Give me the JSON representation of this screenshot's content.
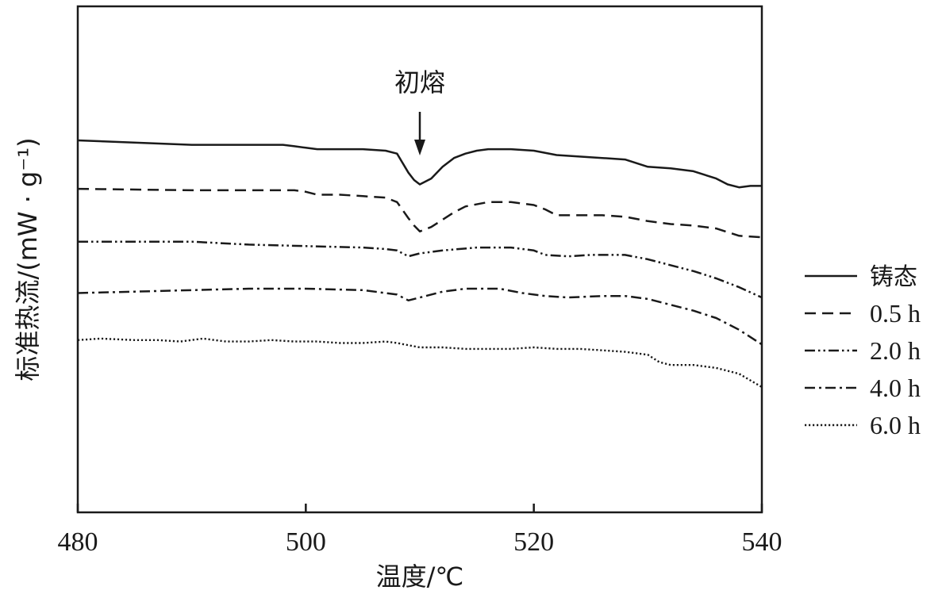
{
  "chart_data": {
    "type": "line",
    "xlabel": "温度/℃",
    "ylabel": "标准热流/(mW · g⁻¹)",
    "xlim": [
      480,
      540
    ],
    "xticks": [
      "480",
      "500",
      "520",
      "540"
    ],
    "grid": false,
    "legend_position": "right",
    "annotation": {
      "text": "初熔",
      "x": 510
    },
    "series": [
      {
        "name": "铸态",
        "style": "solid",
        "points": [
          [
            480,
            1.86
          ],
          [
            490,
            1.83
          ],
          [
            498,
            1.83
          ],
          [
            499,
            1.82
          ],
          [
            500,
            1.81
          ],
          [
            501,
            1.8
          ],
          [
            503,
            1.8
          ],
          [
            505,
            1.8
          ],
          [
            507,
            1.79
          ],
          [
            508,
            1.77
          ],
          [
            509,
            1.64
          ],
          [
            509.5,
            1.59
          ],
          [
            510,
            1.56
          ],
          [
            511,
            1.6
          ],
          [
            512,
            1.68
          ],
          [
            513,
            1.74
          ],
          [
            514,
            1.77
          ],
          [
            515,
            1.79
          ],
          [
            516,
            1.8
          ],
          [
            518,
            1.8
          ],
          [
            520,
            1.79
          ],
          [
            522,
            1.76
          ],
          [
            524,
            1.75
          ],
          [
            526,
            1.74
          ],
          [
            528,
            1.73
          ],
          [
            530,
            1.68
          ],
          [
            532,
            1.67
          ],
          [
            534,
            1.65
          ],
          [
            536,
            1.6
          ],
          [
            537,
            1.56
          ],
          [
            538,
            1.54
          ],
          [
            539,
            1.55
          ],
          [
            540,
            1.55
          ]
        ]
      },
      {
        "name": "0.5 h",
        "style": "dashed",
        "points": [
          [
            480,
            1.53
          ],
          [
            490,
            1.52
          ],
          [
            499,
            1.52
          ],
          [
            500,
            1.51
          ],
          [
            501,
            1.49
          ],
          [
            503,
            1.49
          ],
          [
            505,
            1.48
          ],
          [
            507,
            1.47
          ],
          [
            508,
            1.44
          ],
          [
            509,
            1.33
          ],
          [
            509.5,
            1.28
          ],
          [
            510,
            1.24
          ],
          [
            511,
            1.27
          ],
          [
            512,
            1.32
          ],
          [
            513,
            1.37
          ],
          [
            514,
            1.41
          ],
          [
            516,
            1.44
          ],
          [
            518,
            1.44
          ],
          [
            520,
            1.42
          ],
          [
            521,
            1.39
          ],
          [
            522,
            1.35
          ],
          [
            524,
            1.35
          ],
          [
            526,
            1.35
          ],
          [
            528,
            1.34
          ],
          [
            530,
            1.31
          ],
          [
            532,
            1.29
          ],
          [
            534,
            1.28
          ],
          [
            536,
            1.26
          ],
          [
            538,
            1.21
          ],
          [
            540,
            1.2
          ]
        ]
      },
      {
        "name": "2.0 h",
        "style": "dash-dot-dot",
        "points": [
          [
            480,
            1.17
          ],
          [
            485,
            1.17
          ],
          [
            490,
            1.17
          ],
          [
            495,
            1.15
          ],
          [
            500,
            1.14
          ],
          [
            505,
            1.13
          ],
          [
            507,
            1.12
          ],
          [
            508,
            1.11
          ],
          [
            509,
            1.07
          ],
          [
            510,
            1.09
          ],
          [
            512,
            1.11
          ],
          [
            515,
            1.13
          ],
          [
            518,
            1.13
          ],
          [
            520,
            1.11
          ],
          [
            521,
            1.08
          ],
          [
            523,
            1.07
          ],
          [
            525,
            1.08
          ],
          [
            528,
            1.08
          ],
          [
            530,
            1.05
          ],
          [
            532,
            1.01
          ],
          [
            534,
            0.97
          ],
          [
            536,
            0.92
          ],
          [
            538,
            0.86
          ],
          [
            540,
            0.79
          ]
        ]
      },
      {
        "name": "4.0 h",
        "style": "dash-dot",
        "points": [
          [
            480,
            0.82
          ],
          [
            485,
            0.83
          ],
          [
            490,
            0.84
          ],
          [
            495,
            0.85
          ],
          [
            500,
            0.85
          ],
          [
            505,
            0.84
          ],
          [
            507,
            0.82
          ],
          [
            508,
            0.81
          ],
          [
            509,
            0.77
          ],
          [
            510,
            0.79
          ],
          [
            512,
            0.83
          ],
          [
            514,
            0.85
          ],
          [
            517,
            0.85
          ],
          [
            519,
            0.82
          ],
          [
            521,
            0.8
          ],
          [
            523,
            0.79
          ],
          [
            526,
            0.8
          ],
          [
            528,
            0.8
          ],
          [
            530,
            0.78
          ],
          [
            532,
            0.74
          ],
          [
            534,
            0.7
          ],
          [
            536,
            0.65
          ],
          [
            538,
            0.57
          ],
          [
            540,
            0.47
          ]
        ]
      },
      {
        "name": "6.0 h",
        "style": "dotted",
        "points": [
          [
            480,
            0.5
          ],
          [
            482,
            0.51
          ],
          [
            485,
            0.5
          ],
          [
            487,
            0.5
          ],
          [
            489,
            0.49
          ],
          [
            491,
            0.51
          ],
          [
            493,
            0.49
          ],
          [
            495,
            0.49
          ],
          [
            497,
            0.5
          ],
          [
            499,
            0.49
          ],
          [
            501,
            0.49
          ],
          [
            503,
            0.48
          ],
          [
            505,
            0.48
          ],
          [
            507,
            0.49
          ],
          [
            508,
            0.48
          ],
          [
            510,
            0.45
          ],
          [
            512,
            0.45
          ],
          [
            514,
            0.44
          ],
          [
            516,
            0.44
          ],
          [
            518,
            0.44
          ],
          [
            520,
            0.45
          ],
          [
            522,
            0.44
          ],
          [
            524,
            0.44
          ],
          [
            526,
            0.43
          ],
          [
            528,
            0.42
          ],
          [
            530,
            0.4
          ],
          [
            531,
            0.35
          ],
          [
            532,
            0.33
          ],
          [
            534,
            0.33
          ],
          [
            536,
            0.31
          ],
          [
            538,
            0.27
          ],
          [
            540,
            0.18
          ]
        ]
      }
    ]
  }
}
